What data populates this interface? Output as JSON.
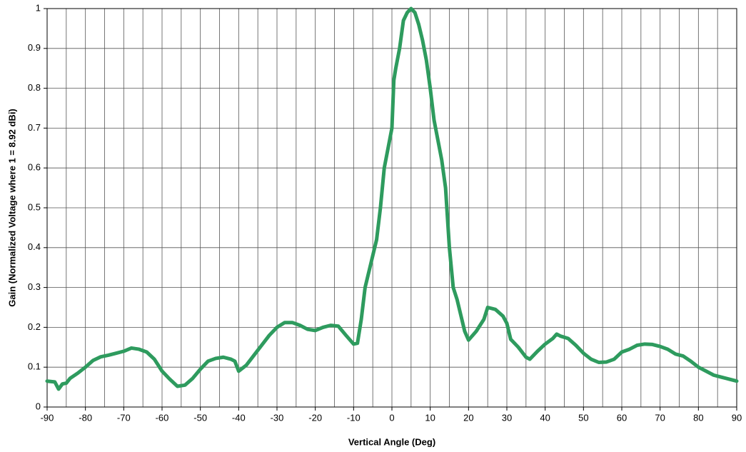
{
  "chart_data": {
    "type": "line",
    "xlabel": "Vertical Angle (Deg)",
    "ylabel": "Gain (Normalized Voltage where 1 = 8.92 dBi)",
    "xlim": [
      -90,
      90
    ],
    "ylim": [
      0,
      1
    ],
    "xticks": [
      -90,
      -80,
      -70,
      -60,
      -50,
      -40,
      -30,
      -20,
      -10,
      0,
      10,
      20,
      30,
      40,
      50,
      60,
      70,
      80,
      90
    ],
    "x_minor_ticks": [
      -85,
      -75,
      -65,
      -55,
      -45,
      -35,
      -25,
      -15,
      -5,
      5,
      15,
      25,
      35,
      45,
      55,
      65,
      75,
      85
    ],
    "yticks": [
      0,
      0.1,
      0.2,
      0.3,
      0.4,
      0.5,
      0.6,
      0.7,
      0.8,
      0.9,
      1
    ],
    "grid": true,
    "x": [
      -90,
      -88,
      -87,
      -86,
      -85,
      -84,
      -82,
      -80,
      -78,
      -76,
      -74,
      -72,
      -70,
      -68,
      -66,
      -64,
      -62,
      -60,
      -58,
      -56,
      -54,
      -52,
      -50,
      -48,
      -46,
      -44,
      -42,
      -41,
      -40,
      -38,
      -36,
      -34,
      -32,
      -30,
      -28,
      -26,
      -24,
      -22,
      -20,
      -18,
      -16,
      -14,
      -12,
      -10,
      -9,
      -8,
      -7,
      -6,
      -4,
      -3,
      -2,
      -1,
      0,
      0.5,
      1,
      2,
      3,
      4,
      5,
      6,
      7,
      8,
      9,
      10,
      11,
      12,
      13,
      14,
      15,
      16,
      17,
      18,
      19,
      20,
      22,
      24,
      25,
      27,
      29,
      30,
      31,
      33,
      35,
      36,
      38,
      40,
      42,
      43,
      44,
      46,
      48,
      50,
      52,
      54,
      56,
      58,
      60,
      62,
      64,
      66,
      68,
      70,
      72,
      74,
      76,
      78,
      80,
      82,
      84,
      86,
      88,
      90
    ],
    "series": [
      {
        "name": "Gain",
        "color": "#2e9b5e",
        "values": [
          0.065,
          0.063,
          0.045,
          0.058,
          0.06,
          0.072,
          0.085,
          0.1,
          0.117,
          0.126,
          0.13,
          0.135,
          0.14,
          0.148,
          0.145,
          0.138,
          0.12,
          0.09,
          0.07,
          0.052,
          0.055,
          0.072,
          0.095,
          0.115,
          0.122,
          0.125,
          0.12,
          0.115,
          0.09,
          0.105,
          0.13,
          0.155,
          0.18,
          0.2,
          0.212,
          0.212,
          0.205,
          0.195,
          0.192,
          0.2,
          0.205,
          0.203,
          0.18,
          0.158,
          0.16,
          0.22,
          0.3,
          0.34,
          0.42,
          0.5,
          0.6,
          0.65,
          0.7,
          0.82,
          0.85,
          0.9,
          0.97,
          0.99,
          1.0,
          0.99,
          0.96,
          0.92,
          0.87,
          0.8,
          0.72,
          0.67,
          0.62,
          0.55,
          0.4,
          0.3,
          0.27,
          0.23,
          0.19,
          0.168,
          0.19,
          0.22,
          0.25,
          0.245,
          0.228,
          0.21,
          0.17,
          0.15,
          0.125,
          0.12,
          0.14,
          0.158,
          0.172,
          0.183,
          0.178,
          0.172,
          0.155,
          0.135,
          0.12,
          0.112,
          0.113,
          0.12,
          0.138,
          0.145,
          0.155,
          0.158,
          0.157,
          0.152,
          0.145,
          0.133,
          0.128,
          0.115,
          0.1,
          0.09,
          0.08,
          0.075,
          0.07,
          0.065
        ]
      }
    ]
  }
}
